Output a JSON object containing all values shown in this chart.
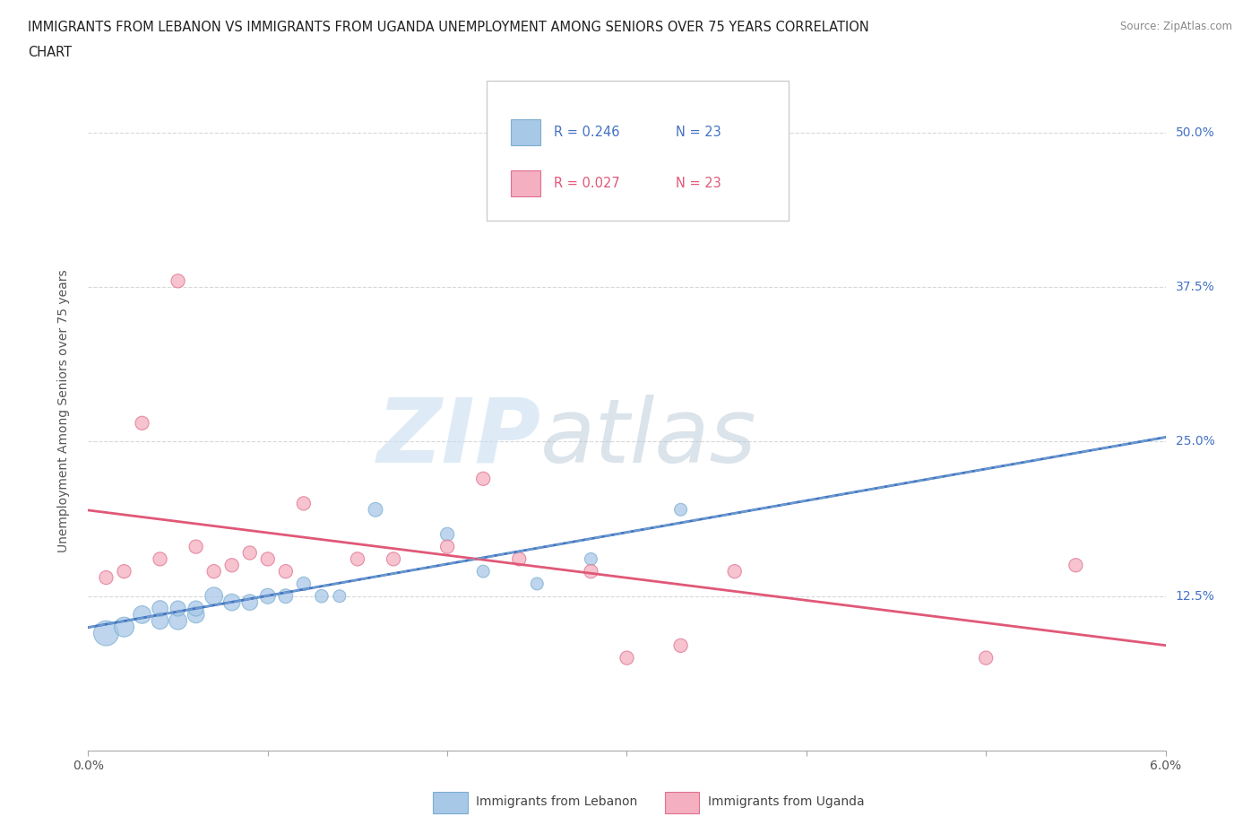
{
  "title_line1": "IMMIGRANTS FROM LEBANON VS IMMIGRANTS FROM UGANDA UNEMPLOYMENT AMONG SENIORS OVER 75 YEARS CORRELATION",
  "title_line2": "CHART",
  "source": "Source: ZipAtlas.com",
  "ylabel": "Unemployment Among Seniors over 75 years",
  "xmin": 0.0,
  "xmax": 0.06,
  "ymin": 0.0,
  "ymax": 0.55,
  "yticks": [
    0.0,
    0.125,
    0.25,
    0.375,
    0.5
  ],
  "ytick_labels": [
    "",
    "12.5%",
    "25.0%",
    "37.5%",
    "50.0%"
  ],
  "xticks": [
    0.0,
    0.01,
    0.02,
    0.03,
    0.04,
    0.05,
    0.06
  ],
  "xtick_labels": [
    "0.0%",
    "",
    "",
    "",
    "",
    "",
    "6.0%"
  ],
  "lebanon_color": "#a8c8e8",
  "lebanon_edge": "#7aaed0",
  "uganda_color": "#f4afc0",
  "uganda_edge": "#e07090",
  "lebanon_line_color": "#4472c4",
  "uganda_line_color": "#e05878",
  "legend_R_lebanon": "R = 0.246",
  "legend_N_lebanon": "N = 23",
  "legend_R_uganda": "R = 0.027",
  "legend_N_uganda": "N = 23",
  "lebanon_x": [
    0.001,
    0.002,
    0.003,
    0.004,
    0.004,
    0.005,
    0.005,
    0.006,
    0.006,
    0.007,
    0.008,
    0.009,
    0.01,
    0.011,
    0.012,
    0.013,
    0.014,
    0.016,
    0.02,
    0.022,
    0.025,
    0.028,
    0.033
  ],
  "lebanon_y": [
    0.095,
    0.1,
    0.11,
    0.105,
    0.115,
    0.105,
    0.115,
    0.11,
    0.115,
    0.125,
    0.12,
    0.12,
    0.125,
    0.125,
    0.135,
    0.125,
    0.125,
    0.195,
    0.175,
    0.145,
    0.135,
    0.155,
    0.195
  ],
  "lebanon_sizes": [
    400,
    250,
    200,
    180,
    160,
    200,
    150,
    180,
    150,
    200,
    180,
    160,
    150,
    130,
    120,
    110,
    100,
    130,
    120,
    100,
    100,
    100,
    100
  ],
  "uganda_x": [
    0.001,
    0.002,
    0.003,
    0.004,
    0.005,
    0.006,
    0.007,
    0.008,
    0.009,
    0.01,
    0.011,
    0.012,
    0.015,
    0.017,
    0.02,
    0.022,
    0.024,
    0.028,
    0.03,
    0.033,
    0.036,
    0.05,
    0.055
  ],
  "uganda_y": [
    0.14,
    0.145,
    0.265,
    0.155,
    0.38,
    0.165,
    0.145,
    0.15,
    0.16,
    0.155,
    0.145,
    0.2,
    0.155,
    0.155,
    0.165,
    0.22,
    0.155,
    0.145,
    0.075,
    0.085,
    0.145,
    0.075,
    0.15
  ],
  "uganda_sizes": [
    120,
    120,
    120,
    120,
    120,
    120,
    120,
    120,
    120,
    120,
    120,
    120,
    120,
    120,
    120,
    120,
    120,
    120,
    120,
    120,
    120,
    120,
    120
  ],
  "watermark_zip": "ZIP",
  "watermark_atlas": "atlas",
  "background_color": "#ffffff",
  "grid_color": "#d8d8d8",
  "right_label_color": "#4472c4",
  "right_label_color_secondary": "#4472c4"
}
